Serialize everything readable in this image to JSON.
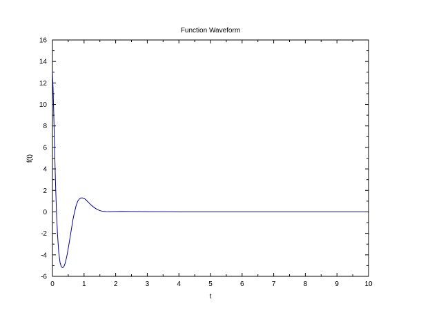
{
  "chart_data": {
    "type": "line",
    "title": "Function Waveform",
    "xlabel": "t",
    "ylabel": "f(t)",
    "xlim": [
      0,
      10
    ],
    "ylim": [
      -6,
      16
    ],
    "x_ticks": [
      "0",
      "1",
      "2",
      "3",
      "4",
      "5",
      "6",
      "7",
      "8",
      "9",
      "10"
    ],
    "y_ticks": [
      "-6",
      "-4",
      "-2",
      "0",
      "2",
      "4",
      "6",
      "8",
      "10",
      "12",
      "14",
      "16"
    ],
    "grid": false,
    "legend": "none",
    "series": [
      {
        "color": "#00008b",
        "x": [
          0,
          0.02,
          0.04,
          0.06,
          0.08,
          0.1,
          0.13,
          0.16,
          0.2,
          0.24,
          0.28,
          0.32,
          0.36,
          0.4,
          0.45,
          0.5,
          0.55,
          0.6,
          0.65,
          0.7,
          0.75,
          0.8,
          0.85,
          0.9,
          0.95,
          1.0,
          1.05,
          1.1,
          1.15,
          1.2,
          1.3,
          1.4,
          1.5,
          1.6,
          1.7,
          1.8,
          1.9,
          2.0,
          2.2,
          2.5,
          2.8,
          3.0,
          4.0,
          5.0,
          6.0,
          7.0,
          8.0,
          9.0,
          10.0
        ],
        "y": [
          13.0,
          11.5,
          9.3,
          6.9,
          4.5,
          2.4,
          -0.2,
          -2.1,
          -3.8,
          -4.7,
          -5.1,
          -5.2,
          -5.1,
          -4.8,
          -4.2,
          -3.4,
          -2.5,
          -1.6,
          -0.7,
          0.0,
          0.6,
          1.0,
          1.2,
          1.3,
          1.3,
          1.25,
          1.15,
          1.0,
          0.85,
          0.7,
          0.45,
          0.25,
          0.12,
          0.05,
          0.02,
          0.01,
          0.02,
          0.03,
          0.04,
          0.03,
          0.02,
          0.01,
          0.0,
          0.0,
          0.0,
          0.0,
          0.0,
          0.0,
          0.0
        ]
      }
    ]
  }
}
